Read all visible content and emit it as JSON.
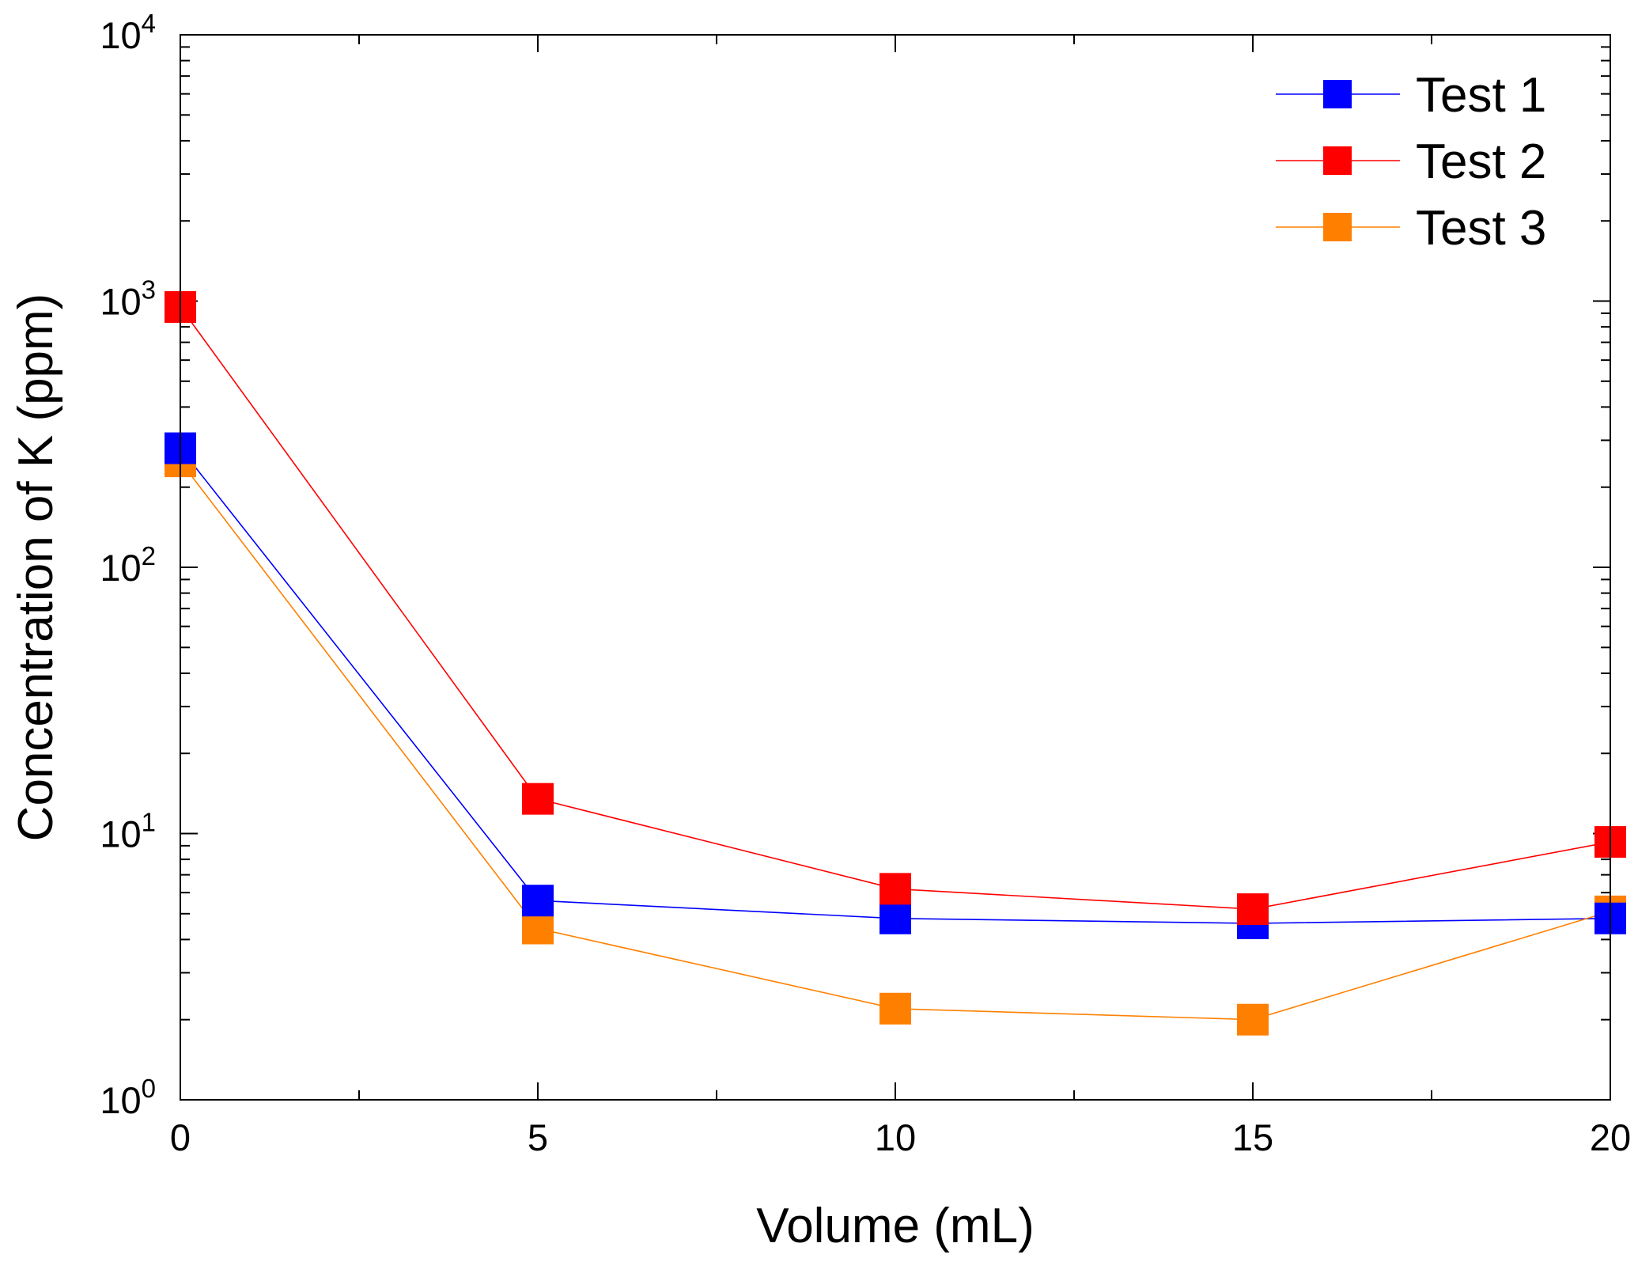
{
  "chart_data": {
    "type": "line",
    "xlabel": "Volume (mL)",
    "ylabel": "Concentration of K (ppm)",
    "xlim": [
      0,
      20
    ],
    "ylim": [
      1,
      10000
    ],
    "yscale": "log",
    "grid": false,
    "legend_position": "top-right",
    "x_ticks": [
      "0",
      "5",
      "10",
      "15",
      "20"
    ],
    "y_ticks": [
      {
        "base": "10",
        "exp": "0"
      },
      {
        "base": "10",
        "exp": "1"
      },
      {
        "base": "10",
        "exp": "2"
      },
      {
        "base": "10",
        "exp": "3"
      },
      {
        "base": "10",
        "exp": "4"
      }
    ],
    "x": [
      0,
      5,
      10,
      15,
      20
    ],
    "series": [
      {
        "name": "Test 1",
        "color": "#0000ff",
        "values": [
          280,
          5.6,
          4.8,
          4.6,
          4.8
        ]
      },
      {
        "name": "Test 2",
        "color": "#ff0000",
        "values": [
          950,
          13.5,
          6.2,
          5.2,
          9.3
        ]
      },
      {
        "name": "Test 3",
        "color": "#ff8000",
        "values": [
          250,
          4.4,
          2.2,
          2.0,
          5.1
        ]
      }
    ]
  }
}
